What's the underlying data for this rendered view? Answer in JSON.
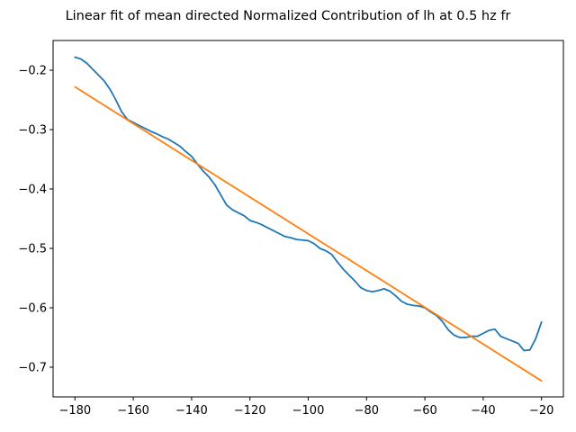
{
  "chart_data": {
    "type": "line",
    "title": "Linear fit of mean directed Normalized Contribution of lh at 0.5 hz fr",
    "xlabel": "",
    "ylabel": "",
    "xlim": [
      -187.5,
      -12.5
    ],
    "ylim": [
      -0.75,
      -0.15
    ],
    "x_ticks": [
      -180,
      -160,
      -140,
      -120,
      -100,
      -80,
      -60,
      -40,
      -20
    ],
    "x_tick_labels": [
      "−180",
      "−160",
      "−140",
      "−120",
      "−100",
      "−80",
      "−60",
      "−40",
      "−20"
    ],
    "y_ticks": [
      -0.2,
      -0.3,
      -0.4,
      -0.5,
      -0.6,
      -0.7
    ],
    "y_tick_labels": [
      "−0.2",
      "−0.3",
      "−0.4",
      "−0.5",
      "−0.6",
      "−0.7"
    ],
    "grid": false,
    "series": [
      {
        "color": "#1f77b4",
        "x": [
          -180,
          -178,
          -176,
          -174,
          -172,
          -170,
          -168,
          -166,
          -164,
          -162,
          -160,
          -158,
          -156,
          -154,
          -152,
          -150,
          -148,
          -146,
          -144,
          -142,
          -140,
          -138,
          -136,
          -134,
          -132,
          -130,
          -128,
          -126,
          -124,
          -122,
          -120,
          -118,
          -116,
          -114,
          -112,
          -110,
          -108,
          -106,
          -104,
          -102,
          -100,
          -98,
          -96,
          -94,
          -92,
          -90,
          -88,
          -86,
          -84,
          -82,
          -80,
          -78,
          -76,
          -74,
          -72,
          -70,
          -68,
          -66,
          -64,
          -62,
          -60,
          -58,
          -56,
          -54,
          -52,
          -50,
          -48,
          -46,
          -44,
          -42,
          -40,
          -38,
          -36,
          -34,
          -32,
          -30,
          -28,
          -26,
          -24,
          -22,
          -20
        ],
        "y": [
          -0.178,
          -0.181,
          -0.188,
          -0.198,
          -0.208,
          -0.218,
          -0.232,
          -0.25,
          -0.27,
          -0.283,
          -0.288,
          -0.293,
          -0.298,
          -0.303,
          -0.307,
          -0.312,
          -0.316,
          -0.322,
          -0.328,
          -0.337,
          -0.345,
          -0.358,
          -0.37,
          -0.38,
          -0.393,
          -0.41,
          -0.427,
          -0.435,
          -0.44,
          -0.445,
          -0.453,
          -0.456,
          -0.46,
          -0.465,
          -0.47,
          -0.475,
          -0.48,
          -0.482,
          -0.485,
          -0.486,
          -0.487,
          -0.492,
          -0.5,
          -0.504,
          -0.51,
          -0.523,
          -0.535,
          -0.545,
          -0.555,
          -0.566,
          -0.571,
          -0.573,
          -0.571,
          -0.568,
          -0.572,
          -0.58,
          -0.589,
          -0.594,
          -0.596,
          -0.597,
          -0.6,
          -0.607,
          -0.613,
          -0.623,
          -0.637,
          -0.646,
          -0.65,
          -0.65,
          -0.648,
          -0.648,
          -0.643,
          -0.638,
          -0.636,
          -0.648,
          -0.652,
          -0.656,
          -0.66,
          -0.672,
          -0.671,
          -0.652,
          -0.624
        ]
      },
      {
        "color": "#ff7f0e",
        "x": [
          -180,
          -20
        ],
        "y": [
          -0.228,
          -0.723
        ]
      }
    ]
  }
}
